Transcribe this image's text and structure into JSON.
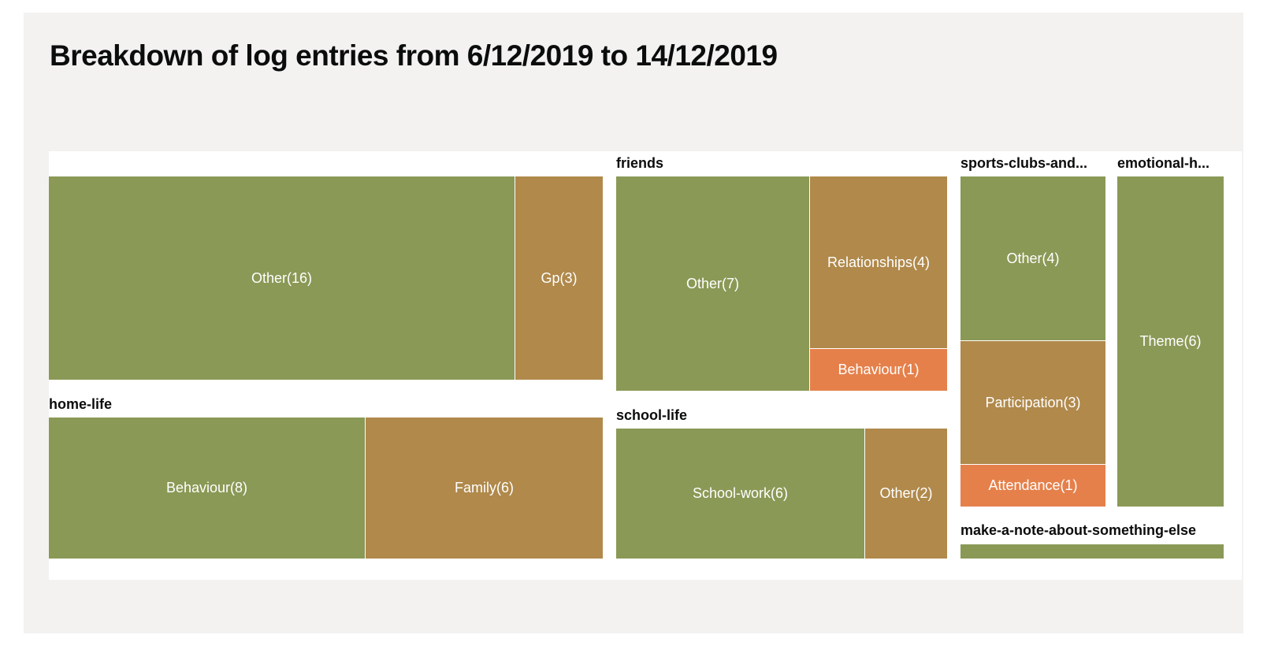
{
  "colors": {
    "rank1": "#8a9956",
    "rank2": "#b0894b",
    "rank3": "#e5804b",
    "background": "#f3f2f1"
  },
  "chart_data": {
    "type": "treemap",
    "title": "Breakdown of log entries from 6/12/2019 to 14/12/2019",
    "groups": [
      {
        "key": "unlabeled-group",
        "label": "",
        "children": [
          {
            "name": "Other",
            "value": 16,
            "label": "Other(16)"
          },
          {
            "name": "Gp",
            "value": 3,
            "label": "Gp(3)"
          }
        ]
      },
      {
        "key": "home-life",
        "label": "home-life",
        "children": [
          {
            "name": "Behaviour",
            "value": 8,
            "label": "Behaviour(8)"
          },
          {
            "name": "Family",
            "value": 6,
            "label": "Family(6)"
          }
        ]
      },
      {
        "key": "friends",
        "label": "friends",
        "children": [
          {
            "name": "Other",
            "value": 7,
            "label": "Other(7)"
          },
          {
            "name": "Relationships",
            "value": 4,
            "label": "Relationships(4)"
          },
          {
            "name": "Behaviour",
            "value": 1,
            "label": "Behaviour(1)"
          }
        ]
      },
      {
        "key": "school-life",
        "label": "school-life",
        "children": [
          {
            "name": "School-work",
            "value": 6,
            "label": "School-work(6)"
          },
          {
            "name": "Other",
            "value": 2,
            "label": "Other(2)"
          }
        ]
      },
      {
        "key": "sports-clubs",
        "label": "sports-clubs-and...",
        "children": [
          {
            "name": "Other",
            "value": 4,
            "label": "Other(4)"
          },
          {
            "name": "Participation",
            "value": 3,
            "label": "Participation(3)"
          },
          {
            "name": "Attendance",
            "value": 1,
            "label": "Attendance(1)"
          }
        ]
      },
      {
        "key": "emotional-health",
        "label": "emotional-h...",
        "children": [
          {
            "name": "Theme",
            "value": 6,
            "label": "Theme(6)"
          }
        ]
      },
      {
        "key": "make-a-note",
        "label": "make-a-note-about-something-else",
        "children": [
          {
            "name": "",
            "value": 0,
            "label": ""
          }
        ]
      }
    ]
  }
}
